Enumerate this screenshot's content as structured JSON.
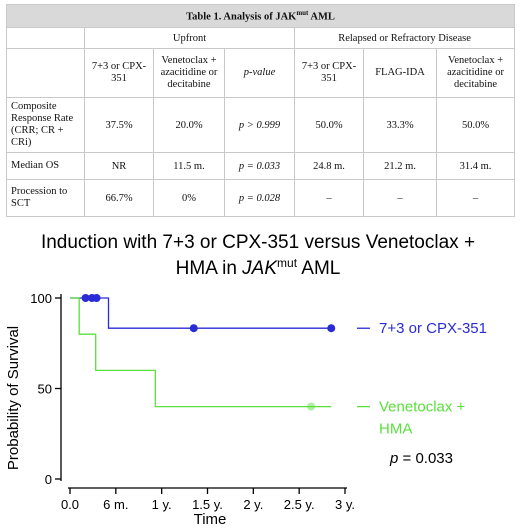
{
  "table": {
    "caption_pre": "Table 1. Analysis of JAK",
    "caption_sup": "mut",
    "caption_post": " AML",
    "group_upfront": "Upfront",
    "group_rr": "Relapsed or Refractory Disease",
    "columns": [
      "7+3 or CPX-351",
      "Venetoclax + azacitidine or decitabine",
      "p-value",
      "7+3 or CPX-351",
      "FLAG-IDA",
      "Venetoclax + azacitidine or decitabine"
    ],
    "rows": [
      {
        "label": "Composite Response Rate (CRR; CR + CRi)",
        "cells": [
          "37.5%",
          "20.0%",
          "p > 0.999",
          "50.0%",
          "33.3%",
          "50.0%"
        ]
      },
      {
        "label": "Median OS",
        "cells": [
          "NR",
          "11.5 m.",
          "p = 0.033",
          "24.8 m.",
          "21.2 m.",
          "31.4 m."
        ]
      },
      {
        "label": "Procession to SCT",
        "cells": [
          "66.7%",
          "0%",
          "p = 0.028",
          "–",
          "–",
          "–"
        ]
      }
    ]
  },
  "chart_data": {
    "type": "line",
    "title_line1": "Induction with 7+3 or CPX-351 versus Venetoclax +",
    "title_line2_pre": "HMA in ",
    "title_line2_italic": "JAK",
    "title_line2_sup": "mut",
    "title_line2_post": " AML",
    "xlabel": "Time",
    "ylabel": "Probability of Survival",
    "xlim": [
      0,
      3
    ],
    "ylim": [
      0,
      100
    ],
    "x_ticks": [
      0,
      0.5,
      1,
      1.5,
      2,
      2.5,
      3
    ],
    "x_tick_labels": [
      "0.0",
      "6 m.",
      "1 y.",
      "1.5 y.",
      "2 y.",
      "2.5 y.",
      "3 y."
    ],
    "y_ticks": [
      0,
      50,
      100
    ],
    "y_tick_labels": [
      "0",
      "50",
      "100"
    ],
    "grid": false,
    "series": [
      {
        "name": "7+3 or CPX-351",
        "legend_lines": [
          "7+3 or CPX-351"
        ],
        "color": "#2b2bd6",
        "steps": [
          [
            0,
            100
          ],
          [
            0.42,
            100
          ],
          [
            0.42,
            83.3
          ],
          [
            2.85,
            83.3
          ]
        ],
        "censored": [
          [
            0.17,
            100
          ],
          [
            0.24,
            100
          ],
          [
            0.29,
            100
          ],
          [
            1.35,
            83.3
          ],
          [
            2.85,
            83.3
          ]
        ]
      },
      {
        "name": "Venetoclax + HMA",
        "legend_lines": [
          "Venetoclax +",
          "HMA"
        ],
        "color": "#5ae03d",
        "steps": [
          [
            0,
            100
          ],
          [
            0.1,
            100
          ],
          [
            0.1,
            80
          ],
          [
            0.28,
            80
          ],
          [
            0.28,
            60
          ],
          [
            0.93,
            60
          ],
          [
            0.93,
            40
          ],
          [
            2.85,
            40
          ]
        ],
        "censored": [
          [
            2.63,
            40
          ]
        ]
      }
    ],
    "annotation": {
      "p_italic": "p",
      "p_rest": " = 0.033"
    }
  }
}
